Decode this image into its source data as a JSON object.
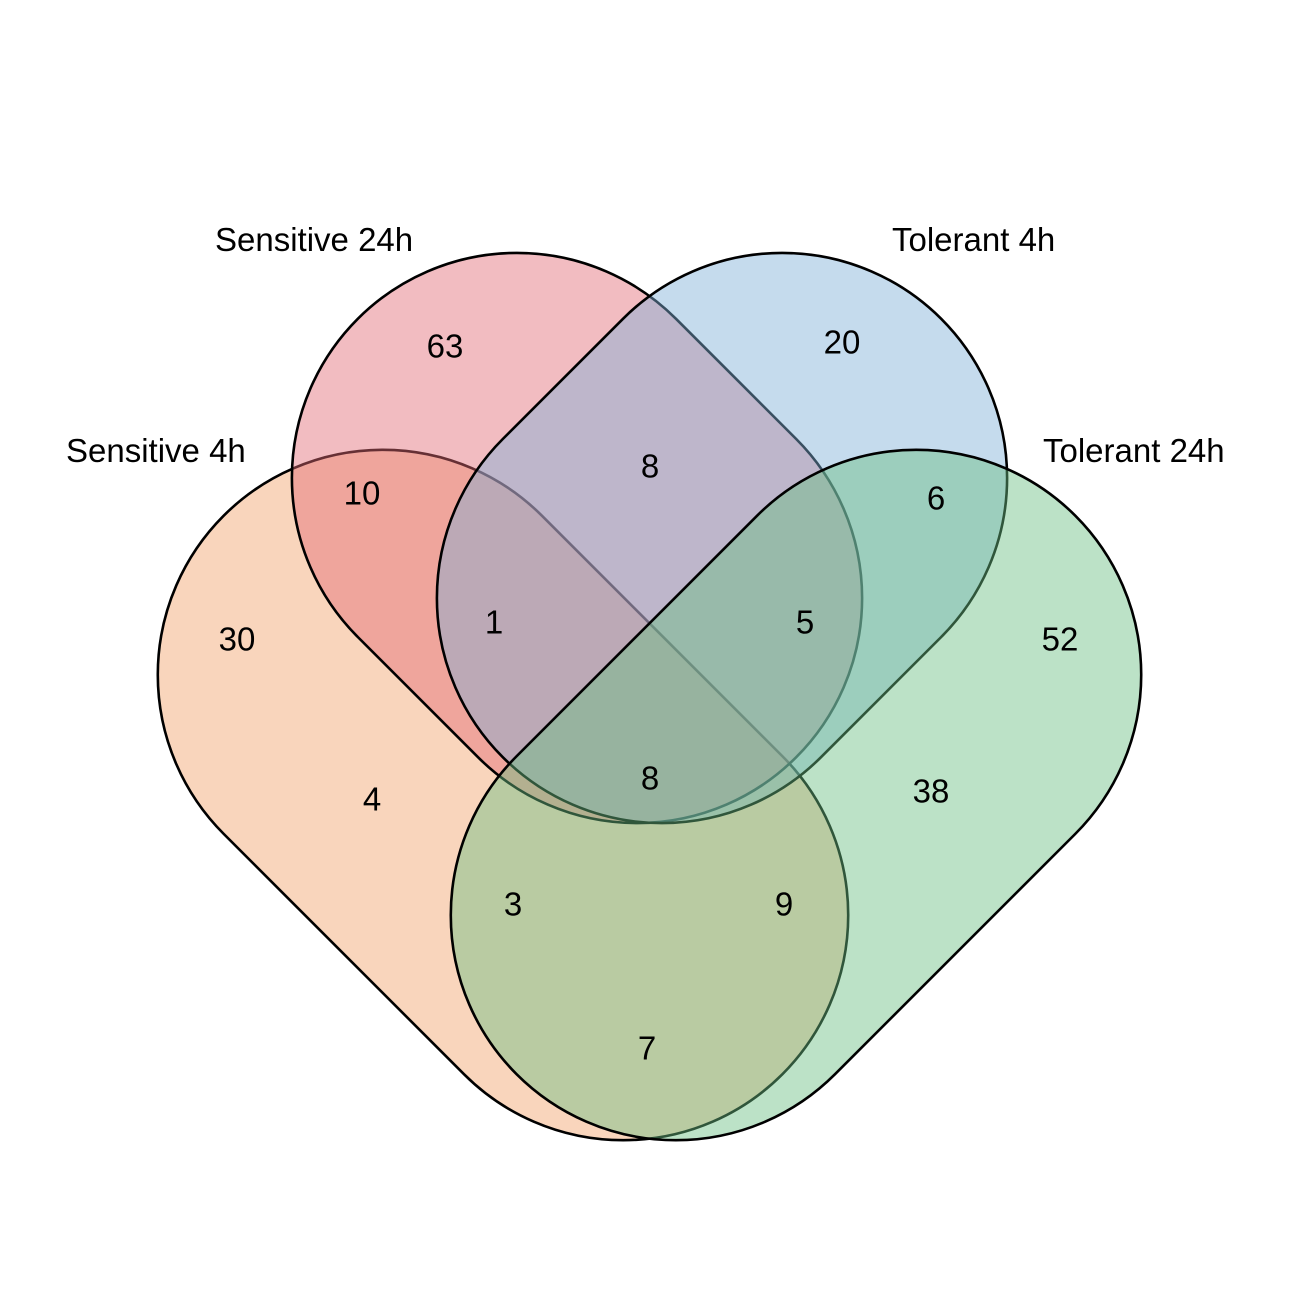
{
  "diagram": {
    "type": "venn-4",
    "sets": [
      {
        "id": "s4h",
        "label": "Sensitive 4h",
        "color": "#f1a16b"
      },
      {
        "id": "s24h",
        "label": "Sensitive 24h",
        "color": "#e36b75"
      },
      {
        "id": "t4h",
        "label": "Tolerant 4h",
        "color": "#7eafd6"
      },
      {
        "id": "t24h",
        "label": "Tolerant 24h",
        "color": "#6abf82"
      }
    ],
    "regions": [
      {
        "sets": [
          "s24h"
        ],
        "count": "63"
      },
      {
        "sets": [
          "t4h"
        ],
        "count": "20"
      },
      {
        "sets": [
          "s4h",
          "s24h"
        ],
        "count": "10"
      },
      {
        "sets": [
          "s24h",
          "t4h"
        ],
        "count": "8"
      },
      {
        "sets": [
          "t4h",
          "t24h"
        ],
        "count": "6"
      },
      {
        "sets": [
          "s4h"
        ],
        "count": "30"
      },
      {
        "sets": [
          "s4h",
          "s24h",
          "t4h"
        ],
        "count": "1"
      },
      {
        "sets": [
          "s24h",
          "t4h",
          "t24h"
        ],
        "count": "5"
      },
      {
        "sets": [
          "t24h"
        ],
        "count": "52"
      },
      {
        "sets": [
          "s4h",
          "t4h"
        ],
        "count": "4"
      },
      {
        "sets": [
          "s4h",
          "s24h",
          "t4h",
          "t24h"
        ],
        "count": "8"
      },
      {
        "sets": [
          "s24h",
          "t24h"
        ],
        "count": "38"
      },
      {
        "sets": [
          "s4h",
          "t4h",
          "t24h"
        ],
        "count": "3"
      },
      {
        "sets": [
          "s4h",
          "s24h",
          "t24h"
        ],
        "count": "9"
      },
      {
        "sets": [
          "s4h",
          "t24h"
        ],
        "count": "7"
      }
    ]
  }
}
